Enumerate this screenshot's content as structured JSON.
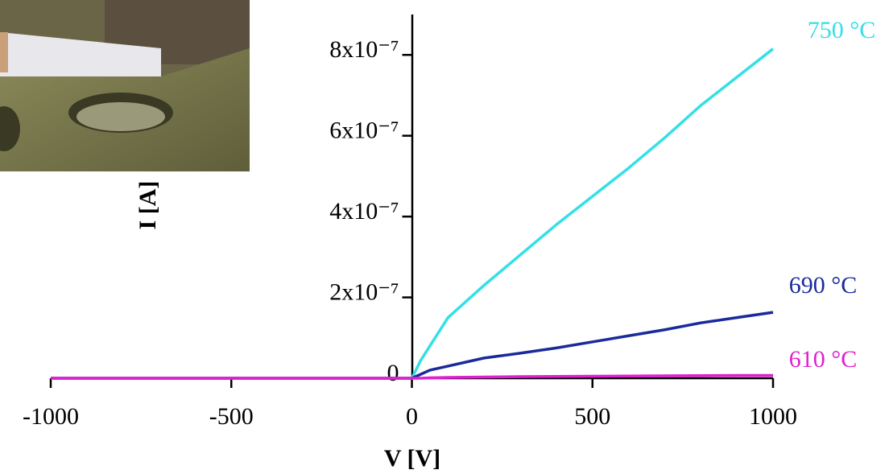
{
  "chart_data": {
    "type": "line",
    "xlabel": "V [V]",
    "ylabel": "I [A]",
    "x": [
      -1000,
      -500,
      -250,
      0,
      25,
      50,
      100,
      200,
      300,
      400,
      500,
      600,
      700,
      800,
      900,
      1000
    ],
    "series": [
      {
        "name": "750 °C",
        "color": "#33e0e6",
        "values": [
          0,
          0,
          0,
          0,
          4.5e-08,
          8e-08,
          1.5e-07,
          2.3e-07,
          3.05e-07,
          3.8e-07,
          4.5e-07,
          5.2e-07,
          5.95e-07,
          6.75e-07,
          7.45e-07,
          8.15e-07
        ]
      },
      {
        "name": "690 °C",
        "color": "#1a2a9c",
        "values": [
          0,
          0,
          0,
          0,
          1e-08,
          2e-08,
          3e-08,
          5e-08,
          6.2e-08,
          7.5e-08,
          9e-08,
          1.05e-07,
          1.2e-07,
          1.37e-07,
          1.5e-07,
          1.63e-07
        ]
      },
      {
        "name": "610 °C",
        "color": "#e020d0",
        "values": [
          0,
          0,
          0,
          0,
          0,
          1e-09,
          2e-09,
          3e-09,
          4e-09,
          4.5e-09,
          5e-09,
          5.5e-09,
          6e-09,
          6.5e-09,
          7e-09,
          7e-09
        ]
      }
    ],
    "xlim": [
      -1000,
      1000
    ],
    "xticks": [
      -1000,
      -500,
      0,
      500,
      1000
    ],
    "ylim": [
      0,
      9e-07
    ],
    "yticks": [
      0,
      {
        "value": 2e-07,
        "label": "2x10⁻⁷"
      },
      {
        "value": 4e-07,
        "label": "4x10⁻⁷"
      },
      {
        "value": 6e-07,
        "label": "6x10⁻⁷"
      },
      {
        "value": 8e-07,
        "label": "8x10⁻⁷"
      }
    ]
  }
}
